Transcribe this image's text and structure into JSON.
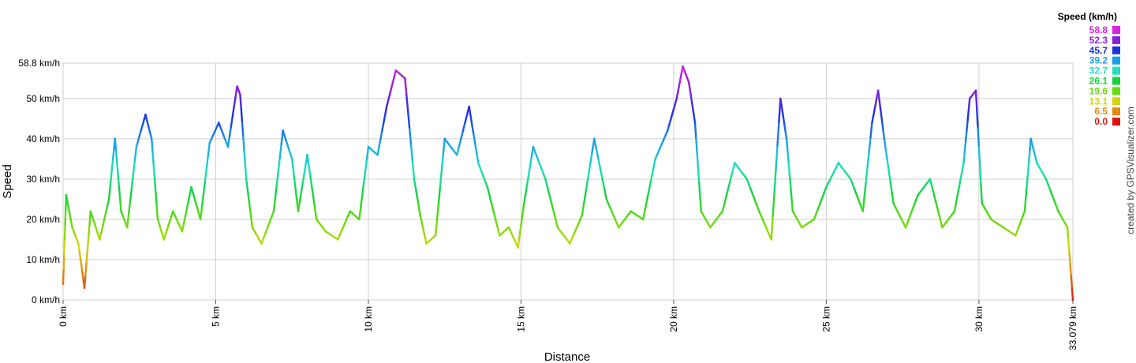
{
  "chart_data": {
    "type": "line",
    "xlabel": "Distance",
    "ylabel": "Speed",
    "x_unit": "km",
    "y_unit": "km/h",
    "xlim": [
      0,
      33.079
    ],
    "ylim": [
      0,
      58.8
    ],
    "y_ticks": [
      {
        "value": 0,
        "label": "0 km/h"
      },
      {
        "value": 10,
        "label": "10 km/h"
      },
      {
        "value": 20,
        "label": "20 km/h"
      },
      {
        "value": 30,
        "label": "30 km/h"
      },
      {
        "value": 40,
        "label": "40 km/h"
      },
      {
        "value": 50,
        "label": "50 km/h"
      },
      {
        "value": 58.8,
        "label": "58.8 km/h"
      }
    ],
    "x_ticks": [
      {
        "value": 0,
        "label": "0 km"
      },
      {
        "value": 5,
        "label": "5 km"
      },
      {
        "value": 10,
        "label": "10 km"
      },
      {
        "value": 15,
        "label": "15 km"
      },
      {
        "value": 20,
        "label": "20 km"
      },
      {
        "value": 25,
        "label": "25 km"
      },
      {
        "value": 30,
        "label": "30 km"
      },
      {
        "value": 33.079,
        "label": "33.079 km"
      }
    ],
    "grid": true,
    "legend": {
      "title": "Speed (km/h)",
      "placement": "top-right",
      "entries": [
        {
          "label": "58.8",
          "color": "#e020e0"
        },
        {
          "label": "52.3",
          "color": "#8a1ee0"
        },
        {
          "label": "45.7",
          "color": "#1a33dd"
        },
        {
          "label": "39.2",
          "color": "#1a9ee8"
        },
        {
          "label": "32.7",
          "color": "#1ee0c0"
        },
        {
          "label": "26.1",
          "color": "#14d43c"
        },
        {
          "label": "19.6",
          "color": "#66dd0a"
        },
        {
          "label": "13.1",
          "color": "#d4d410"
        },
        {
          "label": "6.5",
          "color": "#e08a10"
        },
        {
          "label": "0.0",
          "color": "#e01010"
        }
      ]
    },
    "series": [
      {
        "x": [
          0.0,
          0.1,
          0.3,
          0.5,
          0.7,
          0.9,
          1.2,
          1.5,
          1.7,
          1.9,
          2.1,
          2.4,
          2.7,
          2.9,
          3.1,
          3.3,
          3.6,
          3.9,
          4.2,
          4.5,
          4.8,
          5.1,
          5.4,
          5.7,
          5.8,
          6.0,
          6.2,
          6.5,
          6.9,
          7.2,
          7.5,
          7.7,
          8.0,
          8.3,
          8.6,
          9.0,
          9.4,
          9.7,
          10.0,
          10.3,
          10.6,
          10.9,
          11.2,
          11.5,
          11.7,
          11.9,
          12.2,
          12.5,
          12.9,
          13.3,
          13.6,
          13.9,
          14.1,
          14.3,
          14.6,
          14.9,
          15.1,
          15.4,
          15.8,
          16.2,
          16.6,
          17.0,
          17.4,
          17.8,
          18.2,
          18.6,
          19.0,
          19.4,
          19.8,
          20.1,
          20.3,
          20.5,
          20.7,
          20.9,
          21.2,
          21.6,
          22.0,
          22.4,
          22.8,
          23.2,
          23.5,
          23.7,
          23.9,
          24.2,
          24.6,
          25.0,
          25.4,
          25.8,
          26.2,
          26.5,
          26.7,
          26.9,
          27.2,
          27.6,
          28.0,
          28.4,
          28.8,
          29.2,
          29.5,
          29.7,
          29.9,
          30.1,
          30.4,
          30.8,
          31.2,
          31.5,
          31.7,
          31.9,
          32.2,
          32.6,
          32.9,
          33.079
        ],
        "y": [
          4,
          26,
          18,
          14,
          3,
          22,
          15,
          25,
          40,
          22,
          18,
          38,
          46,
          40,
          20,
          15,
          22,
          17,
          28,
          20,
          39,
          44,
          38,
          53,
          51,
          30,
          18,
          14,
          22,
          42,
          35,
          22,
          36,
          20,
          17,
          15,
          22,
          20,
          38,
          36,
          48,
          57,
          55,
          30,
          21,
          14,
          16,
          40,
          36,
          48,
          34,
          28,
          22,
          16,
          18,
          13,
          24,
          38,
          30,
          18,
          14,
          21,
          40,
          25,
          18,
          22,
          20,
          35,
          42,
          50,
          58,
          54,
          44,
          22,
          18,
          22,
          34,
          30,
          22,
          15,
          50,
          40,
          22,
          18,
          20,
          28,
          34,
          30,
          22,
          44,
          52,
          40,
          24,
          18,
          26,
          30,
          18,
          22,
          34,
          50,
          52,
          24,
          20,
          18,
          16,
          22,
          40,
          34,
          30,
          22,
          18,
          0
        ]
      }
    ]
  },
  "credit": "created by GPSVisualizer.com"
}
